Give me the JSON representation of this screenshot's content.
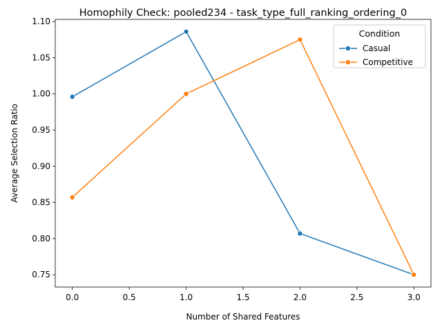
{
  "chart_data": {
    "type": "line",
    "title": "Homophily Check: pooled234 - task_type_full_ranking_ordering_0",
    "xlabel": "Number of Shared Features",
    "ylabel": "Average Selection Ratio",
    "xlim": [
      -0.15,
      3.15
    ],
    "ylim": [
      0.733,
      1.103
    ],
    "xticks": [
      0.0,
      0.5,
      1.0,
      1.5,
      2.0,
      2.5,
      3.0
    ],
    "xtick_labels": [
      "0.0",
      "0.5",
      "1.0",
      "1.5",
      "2.0",
      "2.5",
      "3.0"
    ],
    "yticks": [
      0.75,
      0.8,
      0.85,
      0.9,
      0.95,
      1.0,
      1.05,
      1.1
    ],
    "ytick_labels": [
      "0.75",
      "0.80",
      "0.85",
      "0.90",
      "0.95",
      "1.00",
      "1.05",
      "1.10"
    ],
    "x": [
      0,
      1,
      2,
      3
    ],
    "series": [
      {
        "name": "Casual",
        "color": "#1f77b4",
        "values": [
          0.996,
          1.086,
          0.807,
          0.75
        ]
      },
      {
        "name": "Competitive",
        "color": "#ff7f0e",
        "values": [
          0.857,
          1.0,
          1.075,
          0.75
        ]
      }
    ],
    "legend": {
      "title": "Condition",
      "placement": "top-right"
    },
    "grid": false,
    "marker": "circle"
  }
}
